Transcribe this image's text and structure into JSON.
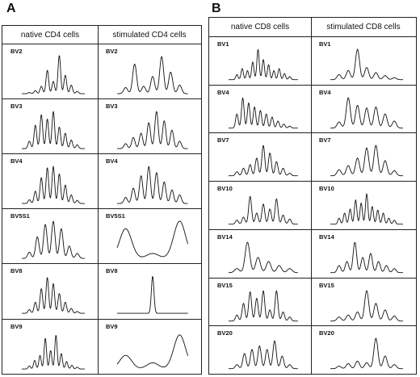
{
  "panels": [
    {
      "letter": "A",
      "columns": [
        "native CD4 cells",
        "stimulated CD4 cells"
      ],
      "rows": [
        {
          "label_left": "BV2",
          "label_right": "BV2",
          "left": [
            2,
            5,
            12,
            38,
            20,
            62,
            30,
            14,
            4
          ],
          "right": [
            10,
            48,
            12,
            28,
            60,
            35,
            14
          ]
        },
        {
          "label_left": "BV3",
          "label_right": "BV3",
          "left": [
            12,
            38,
            55,
            48,
            60,
            35,
            25,
            14,
            6
          ],
          "right": [
            8,
            18,
            25,
            42,
            60,
            45,
            30,
            12
          ]
        },
        {
          "label_left": "BV4",
          "label_right": "BV4",
          "left": [
            6,
            20,
            42,
            58,
            60,
            48,
            30,
            14,
            5
          ],
          "right": [
            10,
            25,
            45,
            60,
            50,
            35,
            22,
            14
          ]
        },
        {
          "label_left": "BV5S1",
          "label_right": "BV5S1",
          "left": [
            10,
            35,
            55,
            60,
            48,
            20,
            8
          ],
          "right": [
            48,
            8,
            60
          ]
        },
        {
          "label_left": "BV8",
          "label_right": "BV8",
          "left": [
            6,
            18,
            40,
            58,
            48,
            32,
            18,
            8,
            3
          ],
          "right": [
            60
          ]
        },
        {
          "label_left": "BV9",
          "label_right": "BV9",
          "left": [
            5,
            14,
            22,
            50,
            30,
            55,
            25,
            12,
            6,
            3
          ],
          "right": [
            22,
            10,
            55
          ]
        }
      ]
    },
    {
      "letter": "B",
      "columns": [
        "native CD8 cells",
        "stimulated CD8 cells"
      ],
      "rows": [
        {
          "label_left": "BV1",
          "label_right": "BV1",
          "left": [
            10,
            22,
            18,
            35,
            60,
            40,
            30,
            18,
            22,
            12,
            6
          ],
          "right": [
            10,
            18,
            60,
            24,
            14,
            8,
            4
          ]
        },
        {
          "label_left": "BV4",
          "label_right": "BV4",
          "left": [
            28,
            60,
            50,
            42,
            35,
            28,
            22,
            14,
            8,
            4
          ],
          "right": [
            12,
            60,
            45,
            40,
            42,
            28,
            14
          ]
        },
        {
          "label_left": "BV7",
          "label_right": "BV7",
          "left": [
            8,
            15,
            22,
            35,
            60,
            45,
            28,
            15,
            5
          ],
          "right": [
            12,
            20,
            35,
            55,
            60,
            30,
            10
          ]
        },
        {
          "label_left": "BV10",
          "label_right": "BV10",
          "left": [
            8,
            14,
            55,
            22,
            40,
            30,
            50,
            18,
            10
          ],
          "right": [
            12,
            22,
            30,
            48,
            42,
            60,
            35,
            28,
            22,
            12,
            8
          ]
        },
        {
          "label_left": "BV14",
          "label_right": "BV14",
          "left": [
            8,
            60,
            30,
            22,
            14,
            8
          ],
          "right": [
            14,
            22,
            60,
            30,
            38,
            22,
            14,
            8
          ]
        },
        {
          "label_left": "BV15",
          "label_right": "BV15",
          "left": [
            12,
            35,
            58,
            45,
            60,
            22,
            60,
            18,
            8
          ],
          "right": [
            8,
            12,
            18,
            60,
            35,
            22,
            10
          ]
        },
        {
          "label_left": "BV20",
          "label_right": "BV20",
          "left": [
            8,
            30,
            38,
            45,
            38,
            55,
            25,
            8
          ],
          "right": [
            5,
            10,
            15,
            12,
            60,
            25,
            8
          ]
        }
      ]
    }
  ]
}
